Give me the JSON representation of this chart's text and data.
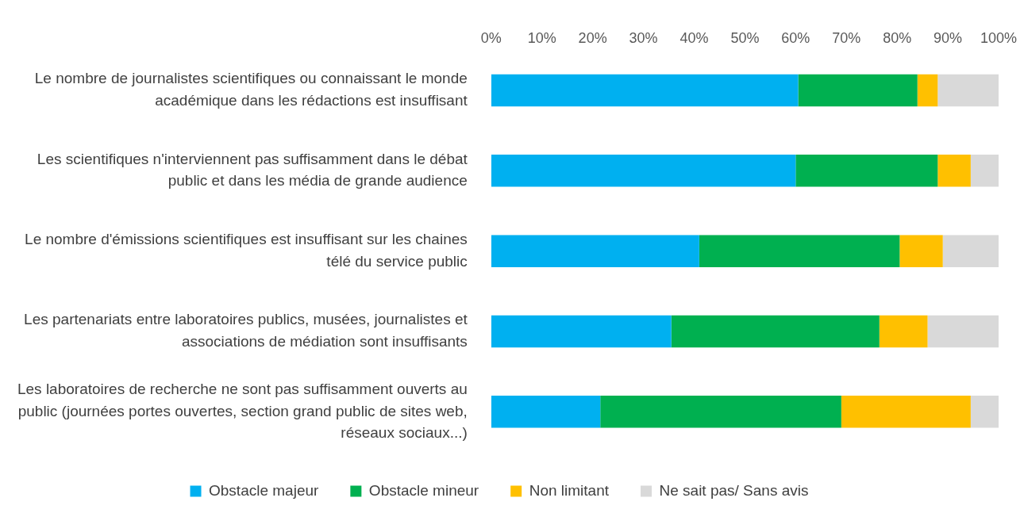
{
  "chart_data": {
    "type": "bar",
    "orientation": "horizontal",
    "stacked": true,
    "categories": [
      "Le nombre de journalistes scientifiques ou connaissant le monde académique dans les rédactions est insuffisant",
      "Les scientifiques n'interviennent pas suffisamment dans le débat public et dans les média de grande audience",
      "Le nombre d'émissions scientifiques est insuffisant sur les chaines télé du service public",
      "Les partenariats entre laboratoires publics, musées, journalistes et associations de médiation sont insuffisants",
      "Les laboratoires de recherche ne sont pas suffisamment ouverts au public (journées portes ouvertes, section grand public de sites web, réseaux sociaux...)"
    ],
    "series": [
      {
        "name": "Obstacle majeur",
        "color": "#00b0f0",
        "values": [
          60.5,
          60,
          41,
          35.5,
          21.5
        ]
      },
      {
        "name": "Obstacle mineur",
        "color": "#00b050",
        "values": [
          23.5,
          28,
          39.5,
          41,
          47.5
        ]
      },
      {
        "name": "Non limitant",
        "color": "#ffc000",
        "values": [
          4,
          6.5,
          8.5,
          9.5,
          25.5
        ]
      },
      {
        "name": "Ne sait pas/ Sans avis",
        "color": "#d9d9d9",
        "values": [
          12,
          5.5,
          11,
          14,
          5.5
        ]
      }
    ],
    "xlim": [
      0,
      100
    ],
    "xticks": [
      {
        "value": 0,
        "label": "0%"
      },
      {
        "value": 10,
        "label": "10%"
      },
      {
        "value": 20,
        "label": "20%"
      },
      {
        "value": 30,
        "label": "30%"
      },
      {
        "value": 40,
        "label": "40%"
      },
      {
        "value": 50,
        "label": "50%"
      },
      {
        "value": 60,
        "label": "60%"
      },
      {
        "value": 70,
        "label": "70%"
      },
      {
        "value": 80,
        "label": "80%"
      },
      {
        "value": 90,
        "label": "90%"
      },
      {
        "value": 100,
        "label": "100%"
      }
    ],
    "legend": "bottom"
  }
}
